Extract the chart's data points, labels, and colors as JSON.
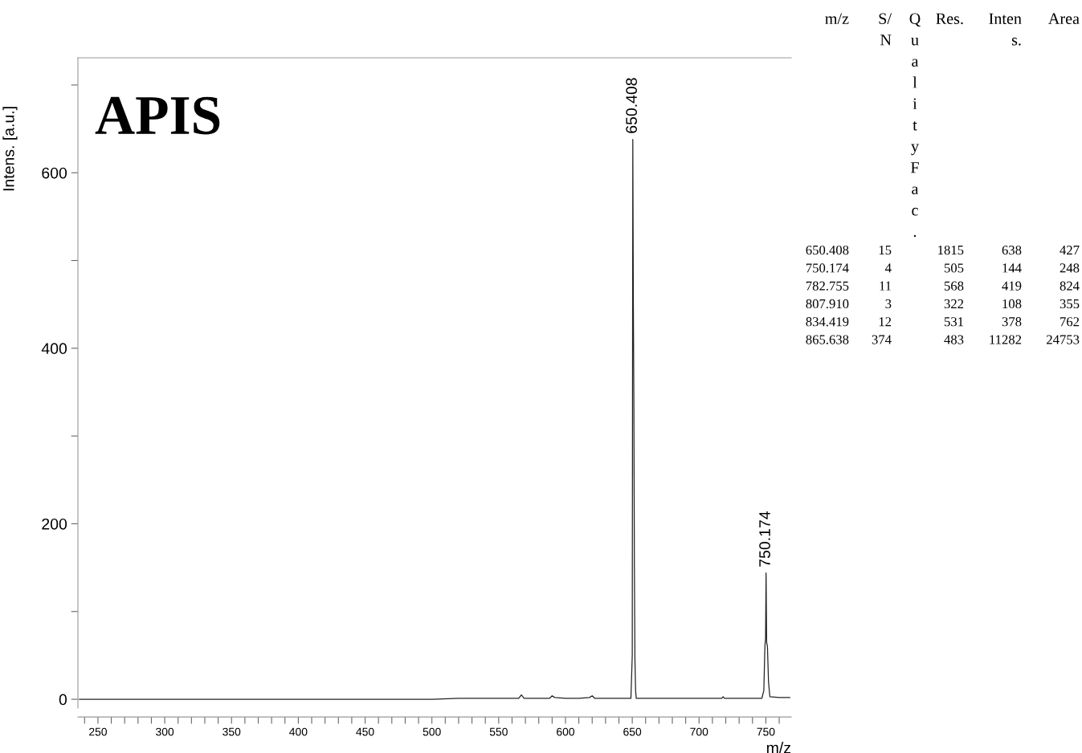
{
  "chart_data": {
    "type": "line",
    "xlabel": "m/z",
    "ylabel": "Intens. [a.u.]",
    "x": [
      236,
      300,
      400,
      500,
      520,
      540,
      560,
      565,
      567,
      569,
      575,
      588,
      590,
      592,
      600,
      610,
      618,
      620,
      622,
      635,
      649,
      650,
      650.408,
      650.8,
      651.2,
      651.6,
      652,
      652.5,
      653,
      670,
      700,
      717,
      718,
      719,
      740,
      747,
      748.5,
      749.3,
      749.8,
      750.174,
      750.6,
      751.2,
      752,
      753,
      760,
      768
    ],
    "series": [
      {
        "color": "#222222",
        "values": [
          0,
          0,
          0,
          0,
          1,
          1,
          1,
          1,
          5,
          1,
          1,
          1,
          4,
          2,
          1,
          1,
          2,
          4,
          1,
          1,
          1,
          50,
          638,
          455,
          340,
          150,
          45,
          10,
          1,
          1,
          1,
          1,
          3,
          1,
          1,
          1,
          10,
          60,
          70,
          144,
          65,
          60,
          20,
          3,
          2,
          2
        ]
      }
    ],
    "xlim": [
      235,
      769
    ],
    "ylim": [
      -10,
      731
    ],
    "xticks": [
      {
        "value": 240,
        "label": null
      },
      250,
      {
        "value": 260,
        "label": null
      },
      {
        "value": 270,
        "label": null
      },
      {
        "value": 280,
        "label": null
      },
      {
        "value": 290,
        "label": null
      },
      300,
      {
        "value": 310,
        "label": null
      },
      {
        "value": 320,
        "label": null
      },
      {
        "value": 330,
        "label": null
      },
      {
        "value": 340,
        "label": null
      },
      350,
      {
        "value": 360,
        "label": null
      },
      {
        "value": 370,
        "label": null
      },
      {
        "value": 380,
        "label": null
      },
      {
        "value": 390,
        "label": null
      },
      400,
      {
        "value": 410,
        "label": null
      },
      {
        "value": 420,
        "label": null
      },
      {
        "value": 430,
        "label": null
      },
      {
        "value": 440,
        "label": null
      },
      450,
      {
        "value": 460,
        "label": null
      },
      {
        "value": 470,
        "label": null
      },
      {
        "value": 480,
        "label": null
      },
      {
        "value": 490,
        "label": null
      },
      500,
      {
        "value": 510,
        "label": null
      },
      {
        "value": 520,
        "label": null
      },
      {
        "value": 530,
        "label": null
      },
      {
        "value": 540,
        "label": null
      },
      550,
      {
        "value": 560,
        "label": null
      },
      {
        "value": 570,
        "label": null
      },
      {
        "value": 580,
        "label": null
      },
      {
        "value": 590,
        "label": null
      },
      600,
      {
        "value": 610,
        "label": null
      },
      {
        "value": 620,
        "label": null
      },
      {
        "value": 630,
        "label": null
      },
      {
        "value": 640,
        "label": null
      },
      650,
      {
        "value": 660,
        "label": null
      },
      {
        "value": 670,
        "label": null
      },
      {
        "value": 680,
        "label": null
      },
      {
        "value": 690,
        "label": null
      },
      700,
      {
        "value": 710,
        "label": null
      },
      {
        "value": 720,
        "label": null
      },
      {
        "value": 730,
        "label": null
      },
      {
        "value": 740,
        "label": null
      },
      750,
      {
        "value": 760,
        "label": null
      }
    ],
    "yticks": [
      0,
      {
        "value": 100,
        "label": null
      },
      200,
      {
        "value": 300,
        "label": null
      },
      400,
      {
        "value": 500,
        "label": null
      },
      600,
      {
        "value": 700,
        "label": null
      }
    ],
    "grid": false,
    "legend": false,
    "annotations": [
      "APIS",
      {
        "text": "650.408",
        "x": 650.408,
        "y": 638
      },
      {
        "text": "750.174",
        "x": 750.174,
        "y": 144
      },
      "m/z",
      "S/N",
      "QualityFac.",
      "Res.",
      "Intens.",
      "Area",
      "650.408",
      "15",
      "1815",
      "638",
      "427",
      "750.174",
      "4",
      "505",
      "144",
      "248",
      "782.755",
      "11",
      "568",
      "419",
      "824",
      "807.910",
      "3",
      "322",
      "108",
      "355",
      "834.419",
      "12",
      "531",
      "378",
      "762",
      "865.638",
      "374",
      "483",
      "11282",
      "24753"
    ]
  }
}
